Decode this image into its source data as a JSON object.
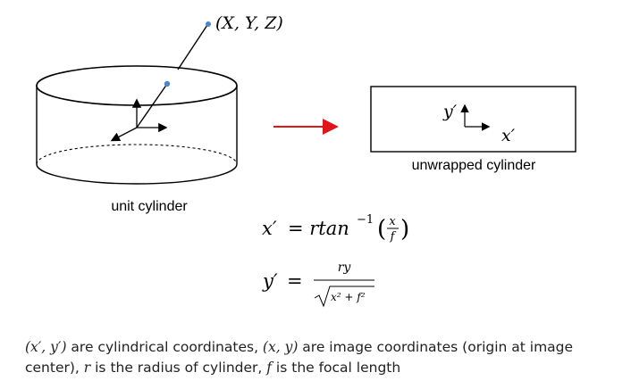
{
  "diagram": {
    "point_label": "(X, Y, Z)",
    "cylinder_label": "unit cylinder",
    "unwrapped_label": "unwrapped cylinder",
    "axis_y_label": "y′",
    "axis_x_label": "x′",
    "arrow_color": "#e0161b",
    "point_color": "#4a86c8"
  },
  "equations": {
    "eq1_lhs": "x′",
    "eq1_rhs_prefix": "= rtan",
    "eq1_superscript": "−1",
    "eq1_open": "(",
    "eq1_frac_num": "x",
    "eq1_frac_den": "f",
    "eq1_close": ")",
    "eq2_lhs": "y′",
    "eq2_equals": "=",
    "eq2_num": "ry",
    "eq2_den": "x² + f²"
  },
  "caption": {
    "part1": "(x′, y′)",
    "part2": " are cylindrical coordinates, ",
    "part3": "(x, y)",
    "part4": " are image coordinates (origin at image center), ",
    "part5": "r",
    "part6": " is the radius of cylinder, ",
    "part7": "f",
    "part8": " is the focal length"
  }
}
